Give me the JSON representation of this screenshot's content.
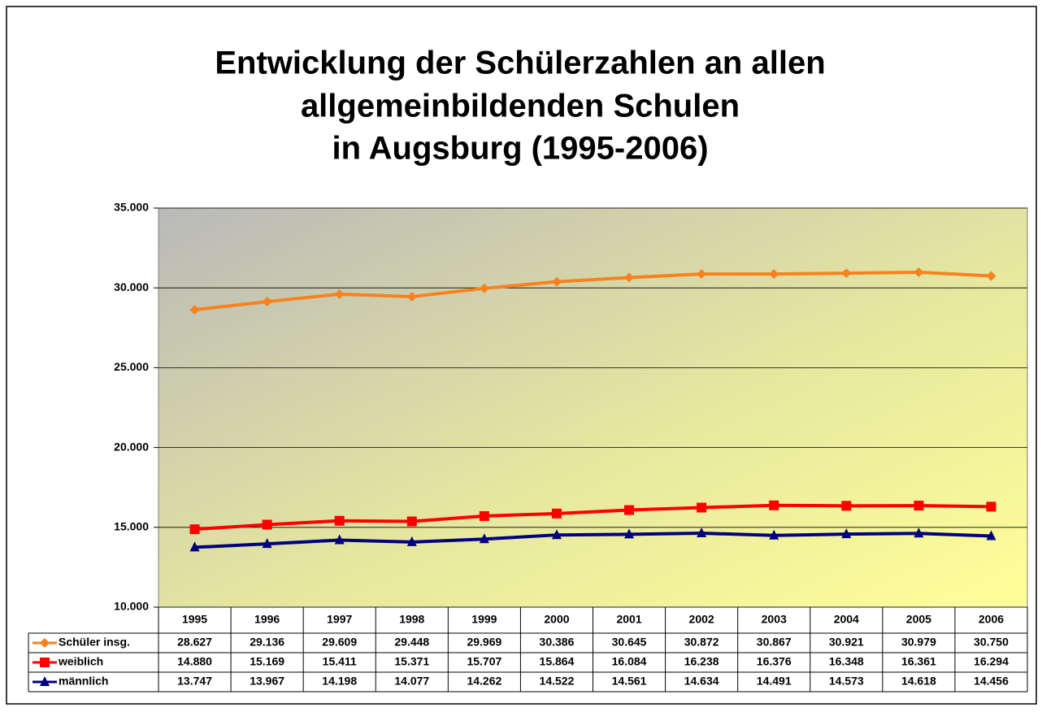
{
  "chart_data": {
    "type": "line",
    "title": [
      "Entwicklung der Schülerzahlen an allen",
      "allgemeinbildenden Schulen",
      "in Augsburg (1995-2006)"
    ],
    "categories": [
      "1995",
      "1996",
      "1997",
      "1998",
      "1999",
      "2000",
      "2001",
      "2002",
      "2003",
      "2004",
      "2005",
      "2006"
    ],
    "series": [
      {
        "name": "Schüler insg.",
        "color": "#f7821e",
        "marker": "diamond",
        "values": [
          28627,
          29136,
          29609,
          29448,
          29969,
          30386,
          30645,
          30872,
          30867,
          30921,
          30979,
          30750
        ],
        "value_labels": [
          "28.627",
          "29.136",
          "29.609",
          "29.448",
          "29.969",
          "30.386",
          "30.645",
          "30.872",
          "30.867",
          "30.921",
          "30.979",
          "30.750"
        ]
      },
      {
        "name": "weiblich",
        "color": "#ff0000",
        "marker": "square",
        "values": [
          14880,
          15169,
          15411,
          15371,
          15707,
          15864,
          16084,
          16238,
          16376,
          16348,
          16361,
          16294
        ],
        "value_labels": [
          "14.880",
          "15.169",
          "15.411",
          "15.371",
          "15.707",
          "15.864",
          "16.084",
          "16.238",
          "16.376",
          "16.348",
          "16.361",
          "16.294"
        ]
      },
      {
        "name": "männlich",
        "color": "#000080",
        "marker": "triangle",
        "values": [
          13747,
          13967,
          14198,
          14077,
          14262,
          14522,
          14561,
          14634,
          14491,
          14573,
          14618,
          14456
        ],
        "value_labels": [
          "13.747",
          "13.967",
          "14.198",
          "14.077",
          "14.262",
          "14.522",
          "14.561",
          "14.634",
          "14.491",
          "14.573",
          "14.618",
          "14.456"
        ]
      }
    ],
    "ylim": [
      10000,
      35000
    ],
    "yticks": [
      {
        "value": 10000,
        "label": "10.000"
      },
      {
        "value": 15000,
        "label": "15.000"
      },
      {
        "value": 20000,
        "label": "20.000"
      },
      {
        "value": 25000,
        "label": "25.000"
      },
      {
        "value": 30000,
        "label": "30.000"
      },
      {
        "value": 35000,
        "label": "35.000"
      }
    ],
    "grid": true
  }
}
